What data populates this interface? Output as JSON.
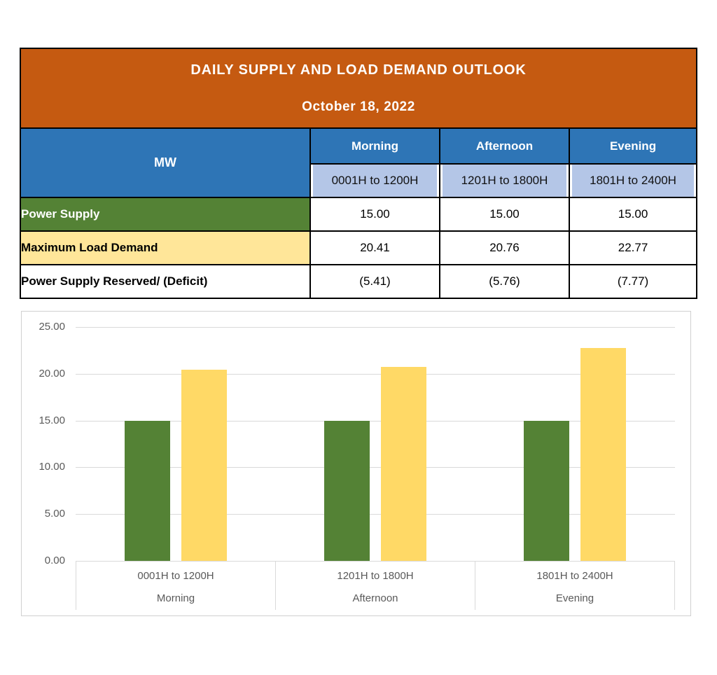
{
  "table": {
    "title": "DAILY SUPPLY AND LOAD DEMAND OUTLOOK",
    "date": "October 18, 2022",
    "unit_label": "MW",
    "columns": [
      {
        "period": "Morning",
        "hours": "0001H to 1200H"
      },
      {
        "period": "Afternoon",
        "hours": "1201H to 1800H"
      },
      {
        "period": "Evening",
        "hours": "1801H to 2400H"
      }
    ],
    "rows": [
      {
        "label": "Power Supply",
        "values": [
          "15.00",
          "15.00",
          "15.00"
        ]
      },
      {
        "label": "Maximum Load Demand",
        "values": [
          "20.41",
          "20.76",
          "22.77"
        ]
      },
      {
        "label": "Power Supply Reserved/ (Deficit)",
        "values": [
          "(5.41)",
          "(5.76)",
          "(7.77)"
        ]
      }
    ],
    "colors": {
      "title_bg": "#C55A11",
      "header_bg": "#2E75B6",
      "subheader_bg": "#B4C6E7",
      "supply_row_bg": "#548235",
      "demand_row_bg": "#FFE699"
    }
  },
  "chart_data": {
    "type": "bar",
    "categories": [
      [
        "0001H to 1200H",
        "Morning"
      ],
      [
        "1201H to 1800H",
        "Afternoon"
      ],
      [
        "1801H to 2400H",
        "Evening"
      ]
    ],
    "series": [
      {
        "name": "Power Supply",
        "color": "#548235",
        "values": [
          15.0,
          15.0,
          15.0
        ]
      },
      {
        "name": "Maximum Load Demand",
        "color": "#FFD966",
        "values": [
          20.41,
          20.76,
          22.77
        ]
      }
    ],
    "title": "",
    "xlabel": "",
    "ylabel": "",
    "ylim": [
      0,
      25
    ],
    "ytick_step": 5,
    "ytick_labels": [
      "0.00",
      "5.00",
      "10.00",
      "15.00",
      "20.00",
      "25.00"
    ],
    "grid": true,
    "gridline_color": "#D9D9D9",
    "legend": "none"
  }
}
